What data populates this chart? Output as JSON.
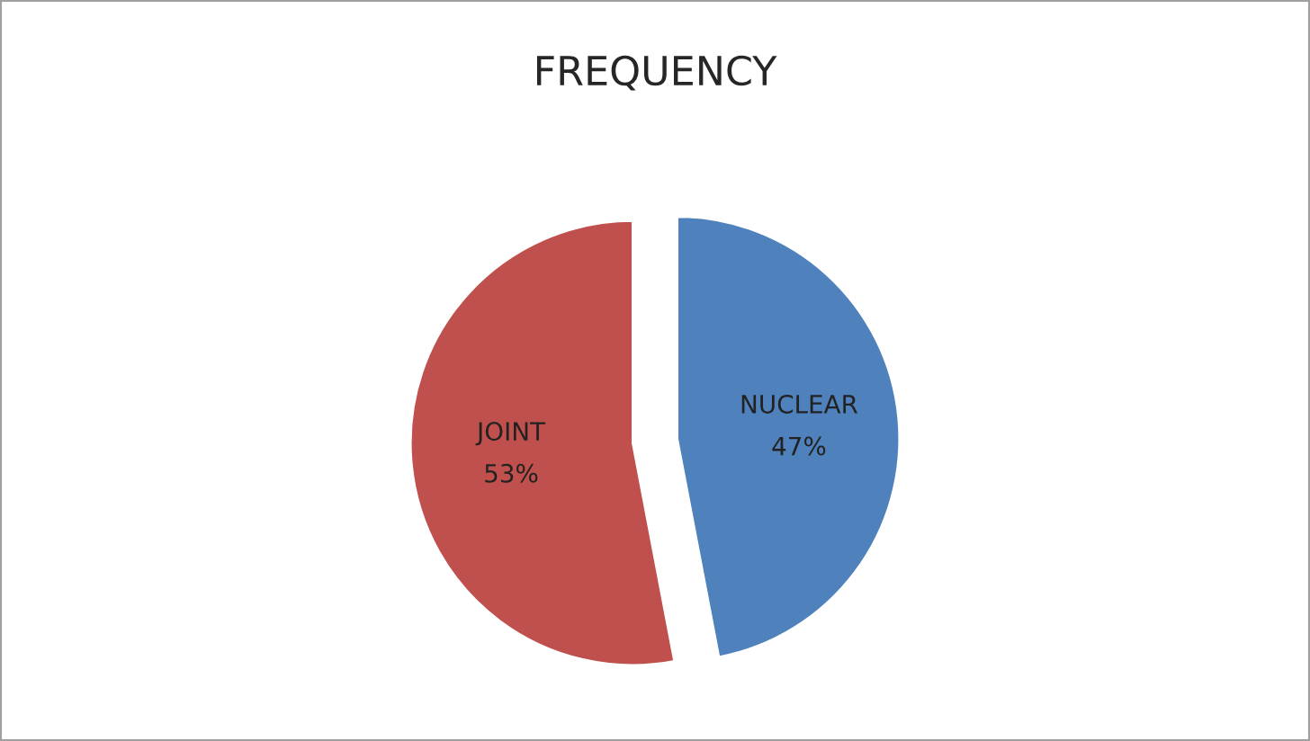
{
  "chart_data": {
    "type": "pie",
    "title": "FREQUENCY",
    "categories": [
      "NUCLEAR",
      "JOINT"
    ],
    "values": [
      47,
      53
    ],
    "value_labels": [
      "47%",
      "53%"
    ],
    "colors": [
      "#4f81bd",
      "#c0504d"
    ]
  }
}
